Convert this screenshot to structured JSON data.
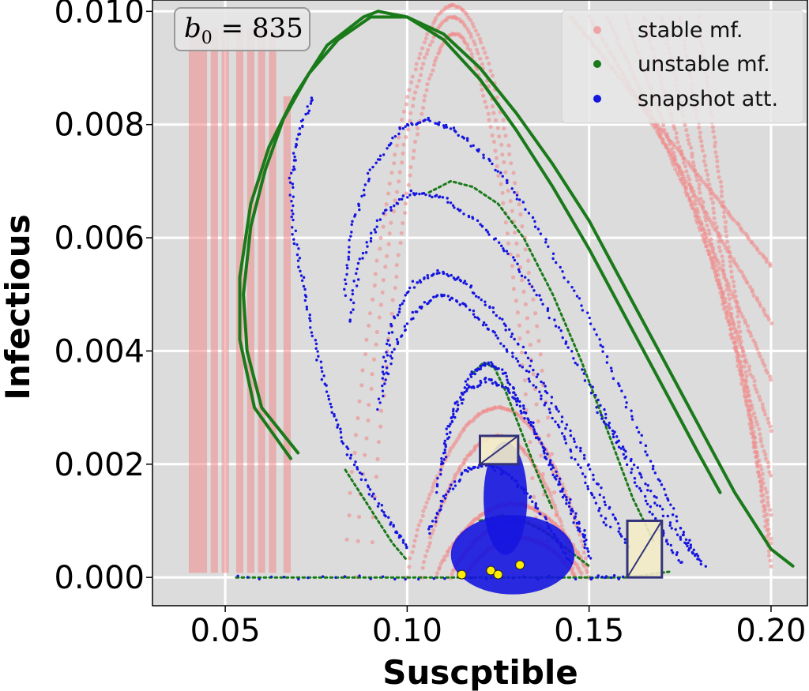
{
  "chart_data": {
    "type": "scatter",
    "xlabel": "Suscptible",
    "ylabel": "Infectious",
    "xlim": [
      0.03,
      0.21
    ],
    "ylim": [
      -0.0005,
      0.0102
    ],
    "xticks": [
      0.05,
      0.1,
      0.15,
      0.2
    ],
    "xtick_labels": [
      "0.05",
      "0.10",
      "0.15",
      "0.20"
    ],
    "yticks": [
      0.0,
      0.002,
      0.004,
      0.006,
      0.008,
      0.01
    ],
    "ytick_labels": [
      "0.000",
      "0.002",
      "0.004",
      "0.006",
      "0.008",
      "0.010"
    ],
    "grid": true,
    "background": "#dcdcdc",
    "annotation": {
      "base": "b",
      "sub": "0",
      "rest": " = 835"
    },
    "legend": {
      "placement": "top-right",
      "entries": [
        {
          "label": "stable mf.",
          "color": "#f08a8a"
        },
        {
          "label": "unstable mf.",
          "color": "#1a7a1a"
        },
        {
          "label": "snapshot att.",
          "color": "#1515e0"
        }
      ]
    },
    "series": [
      {
        "name": "unstable mf.",
        "color": "#1a7a1a",
        "curves": [
          [
            [
              0.07,
              0.0022
            ],
            [
              0.06,
              0.003
            ],
            [
              0.056,
              0.004
            ],
            [
              0.055,
              0.005
            ],
            [
              0.057,
              0.0062
            ],
            [
              0.061,
              0.0072
            ],
            [
              0.066,
              0.0081
            ],
            [
              0.073,
              0.0089
            ],
            [
              0.081,
              0.0095
            ],
            [
              0.09,
              0.0099
            ],
            [
              0.1,
              0.0099
            ],
            [
              0.11,
              0.0096
            ],
            [
              0.12,
              0.009
            ],
            [
              0.13,
              0.0082
            ],
            [
              0.14,
              0.0073
            ],
            [
              0.15,
              0.0063
            ],
            [
              0.16,
              0.0051
            ],
            [
              0.17,
              0.0039
            ],
            [
              0.18,
              0.0027
            ],
            [
              0.19,
              0.0015
            ],
            [
              0.2,
              0.0005
            ],
            [
              0.206,
              0.0002
            ]
          ],
          [
            [
              0.068,
              0.0021
            ],
            [
              0.058,
              0.003
            ],
            [
              0.054,
              0.0042
            ],
            [
              0.054,
              0.0053
            ],
            [
              0.057,
              0.0066
            ],
            [
              0.062,
              0.0076
            ],
            [
              0.069,
              0.0085
            ],
            [
              0.078,
              0.0094
            ],
            [
              0.088,
              0.0099
            ],
            [
              0.092,
              0.01
            ],
            [
              0.1,
              0.0099
            ],
            [
              0.11,
              0.0095
            ],
            [
              0.12,
              0.0088
            ],
            [
              0.13,
              0.0079
            ],
            [
              0.14,
              0.0069
            ],
            [
              0.15,
              0.0058
            ],
            [
              0.16,
              0.0046
            ],
            [
              0.17,
              0.0034
            ],
            [
              0.18,
              0.0022
            ],
            [
              0.186,
              0.0015
            ]
          ],
          [
            [
              0.083,
              0.0019
            ],
            [
              0.088,
              0.0014
            ],
            [
              0.092,
              0.001
            ],
            [
              0.096,
              0.0006
            ],
            [
              0.1,
              0.0003
            ]
          ],
          [
            [
              0.118,
              0.0036
            ],
            [
              0.121,
              0.0038
            ],
            [
              0.124,
              0.0037
            ],
            [
              0.127,
              0.0033
            ],
            [
              0.13,
              0.0028
            ],
            [
              0.136,
              0.0018
            ],
            [
              0.14,
              0.0012
            ]
          ],
          [
            [
              0.106,
              0.0068
            ],
            [
              0.112,
              0.007
            ],
            [
              0.118,
              0.0069
            ],
            [
              0.125,
              0.0066
            ],
            [
              0.132,
              0.006
            ],
            [
              0.14,
              0.005
            ],
            [
              0.148,
              0.0038
            ],
            [
              0.155,
              0.0026
            ],
            [
              0.162,
              0.0014
            ],
            [
              0.168,
              0.0006
            ]
          ],
          [
            [
              0.12,
              0.001
            ],
            [
              0.126,
              0.0011
            ],
            [
              0.132,
              0.001
            ],
            [
              0.138,
              0.0008
            ],
            [
              0.144,
              0.0005
            ],
            [
              0.15,
              0.0002
            ]
          ],
          [
            [
              0.053,
              0.0
            ],
            [
              0.1,
              0.0
            ],
            [
              0.16,
              0.0
            ],
            [
              0.172,
              0.0001
            ]
          ]
        ]
      },
      {
        "name": "snapshot att.",
        "color": "#1515e0",
        "curves": [
          [
            [
              0.074,
              0.0085
            ],
            [
              0.07,
              0.0078
            ],
            [
              0.068,
              0.007
            ],
            [
              0.069,
              0.006
            ],
            [
              0.072,
              0.005
            ],
            [
              0.075,
              0.004
            ],
            [
              0.079,
              0.003
            ],
            [
              0.084,
              0.0022
            ],
            [
              0.09,
              0.0015
            ],
            [
              0.096,
              0.0009
            ],
            [
              0.1,
              0.0005
            ]
          ],
          [
            [
              0.083,
              0.005
            ],
            [
              0.085,
              0.0062
            ],
            [
              0.09,
              0.0072
            ],
            [
              0.098,
              0.0079
            ],
            [
              0.105,
              0.0081
            ],
            [
              0.113,
              0.0079
            ],
            [
              0.122,
              0.0074
            ],
            [
              0.132,
              0.0066
            ],
            [
              0.142,
              0.0055
            ],
            [
              0.152,
              0.0043
            ],
            [
              0.16,
              0.0031
            ],
            [
              0.168,
              0.0019
            ],
            [
              0.175,
              0.0009
            ],
            [
              0.18,
              0.0003
            ]
          ],
          [
            [
              0.084,
              0.0045
            ],
            [
              0.087,
              0.0056
            ],
            [
              0.093,
              0.0064
            ],
            [
              0.101,
              0.0068
            ],
            [
              0.11,
              0.0067
            ],
            [
              0.119,
              0.0063
            ],
            [
              0.128,
              0.0057
            ],
            [
              0.137,
              0.0049
            ],
            [
              0.146,
              0.0039
            ],
            [
              0.155,
              0.0028
            ],
            [
              0.163,
              0.0017
            ],
            [
              0.17,
              0.0008
            ],
            [
              0.176,
              0.0002
            ]
          ],
          [
            [
              0.093,
              0.0035
            ],
            [
              0.096,
              0.0045
            ],
            [
              0.102,
              0.0052
            ],
            [
              0.109,
              0.0054
            ],
            [
              0.116,
              0.0052
            ],
            [
              0.124,
              0.0047
            ],
            [
              0.132,
              0.004
            ],
            [
              0.14,
              0.0031
            ],
            [
              0.148,
              0.0022
            ],
            [
              0.155,
              0.0013
            ],
            [
              0.161,
              0.0005
            ]
          ],
          [
            [
              0.092,
              0.003
            ],
            [
              0.096,
              0.004
            ],
            [
              0.102,
              0.0047
            ],
            [
              0.109,
              0.005
            ],
            [
              0.116,
              0.0048
            ],
            [
              0.124,
              0.0043
            ],
            [
              0.133,
              0.0036
            ],
            [
              0.141,
              0.0027
            ],
            [
              0.149,
              0.0017
            ],
            [
              0.156,
              0.0008
            ]
          ],
          [
            [
              0.11,
              0.002
            ],
            [
              0.113,
              0.003
            ],
            [
              0.118,
              0.0036
            ],
            [
              0.122,
              0.0038
            ],
            [
              0.127,
              0.0036
            ],
            [
              0.132,
              0.003
            ],
            [
              0.138,
              0.0022
            ],
            [
              0.144,
              0.0014
            ],
            [
              0.15,
              0.0006
            ]
          ],
          [
            [
              0.108,
              0.0015
            ],
            [
              0.111,
              0.0026
            ],
            [
              0.116,
              0.0033
            ],
            [
              0.122,
              0.0035
            ],
            [
              0.128,
              0.0033
            ],
            [
              0.134,
              0.0027
            ],
            [
              0.14,
              0.0019
            ],
            [
              0.146,
              0.001
            ],
            [
              0.151,
              0.0003
            ]
          ],
          [
            [
              0.106,
              0.0008
            ],
            [
              0.11,
              0.0014
            ],
            [
              0.116,
              0.0019
            ],
            [
              0.122,
              0.002
            ],
            [
              0.128,
              0.0018
            ],
            [
              0.134,
              0.0014
            ],
            [
              0.14,
              0.0008
            ],
            [
              0.145,
              0.0002
            ]
          ],
          [
            [
              0.152,
              0.003
            ],
            [
              0.16,
              0.0022
            ],
            [
              0.168,
              0.0014
            ],
            [
              0.176,
              0.0006
            ],
            [
              0.182,
              0.0002
            ]
          ],
          [
            [
              0.053,
              0.0
            ],
            [
              0.1,
              0.0
            ],
            [
              0.15,
              0.0
            ],
            [
              0.16,
              0.0
            ]
          ]
        ],
        "blobs": [
          {
            "cx": 0.129,
            "cy": 0.0004,
            "rx": 0.017,
            "ry": 0.0007
          },
          {
            "cx": 0.127,
            "cy": 0.0014,
            "rx": 0.006,
            "ry": 0.001
          }
        ]
      },
      {
        "name": "stable mf.",
        "color": "#f08a8a",
        "bands": [
          {
            "x0": 0.04,
            "x1": 0.045,
            "ytop": 0.0097
          },
          {
            "x0": 0.046,
            "x1": 0.048,
            "ytop": 0.0097
          },
          {
            "x0": 0.049,
            "x1": 0.051,
            "ytop": 0.0097
          },
          {
            "x0": 0.053,
            "x1": 0.055,
            "ytop": 0.0097
          },
          {
            "x0": 0.056,
            "x1": 0.058,
            "ytop": 0.0097
          },
          {
            "x0": 0.059,
            "x1": 0.061,
            "ytop": 0.0097
          },
          {
            "x0": 0.062,
            "x1": 0.064,
            "ytop": 0.0097
          },
          {
            "x0": 0.066,
            "x1": 0.068,
            "ytop": 0.0085
          }
        ],
        "arcs": [
          {
            "x0": 0.083,
            "x1": 0.142,
            "peak": 0.0101
          },
          {
            "x0": 0.086,
            "x1": 0.139,
            "peak": 0.0099
          },
          {
            "x0": 0.09,
            "x1": 0.136,
            "peak": 0.0096
          },
          {
            "x0": 0.1,
            "x1": 0.15,
            "peak": 0.003
          },
          {
            "x0": 0.104,
            "x1": 0.146,
            "peak": 0.0025
          },
          {
            "x0": 0.108,
            "x1": 0.15,
            "peak": 0.0013
          },
          {
            "x0": 0.112,
            "x1": 0.148,
            "peak": 0.001
          },
          {
            "x0": 0.116,
            "x1": 0.146,
            "peak": 0.0007
          }
        ],
        "diagonals": [
          {
            "xa": 0.145,
            "xb": 0.2,
            "yb": 0.0055
          },
          {
            "xa": 0.15,
            "xb": 0.2,
            "yb": 0.0045
          },
          {
            "xa": 0.155,
            "xb": 0.2,
            "yb": 0.0035
          },
          {
            "xa": 0.16,
            "xb": 0.2,
            "yb": 0.0026
          },
          {
            "xa": 0.165,
            "xb": 0.2,
            "yb": 0.0018
          },
          {
            "xa": 0.17,
            "xb": 0.2,
            "yb": 0.0011
          },
          {
            "xa": 0.175,
            "xb": 0.2,
            "yb": 0.0006
          },
          {
            "xa": 0.18,
            "xb": 0.2,
            "yb": 0.0002
          }
        ]
      }
    ],
    "points": {
      "color": "#ffee00",
      "values": [
        [
          0.115,
          5e-05
        ],
        [
          0.123,
          0.00012
        ],
        [
          0.125,
          5e-05
        ],
        [
          0.131,
          0.00022
        ]
      ]
    },
    "boxes": [
      {
        "x0": 0.12,
        "x1": 0.1305,
        "y0": 0.002,
        "y1": 0.0025
      },
      {
        "x0": 0.1605,
        "x1": 0.17,
        "y0": 0.0,
        "y1": 0.001
      }
    ]
  }
}
